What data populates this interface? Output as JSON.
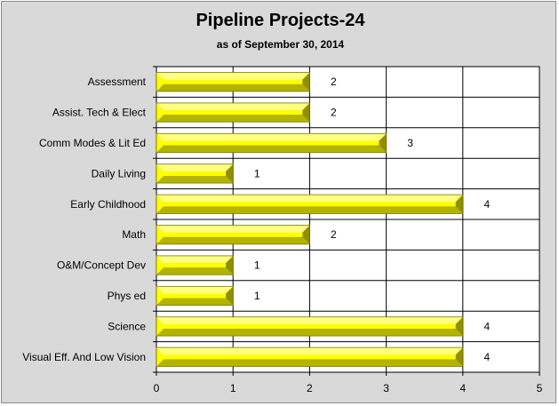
{
  "chart_data": {
    "type": "bar",
    "orientation": "horizontal",
    "title": "Pipeline Projects-24",
    "subtitle": "as of September 30, 2014",
    "categories": [
      "Assessment",
      "Assist. Tech & Elect",
      "Comm Modes & Lit Ed",
      "Daily Living",
      "Early Childhood",
      "Math",
      "O&M/Concept Dev",
      "Phys ed",
      "Science",
      "Visual Eff. And Low Vision"
    ],
    "values": [
      2,
      2,
      3,
      1,
      4,
      2,
      1,
      1,
      4,
      4
    ],
    "data_labels": [
      "2",
      "2",
      "3",
      "1",
      "4",
      "2",
      "1",
      "1",
      "4",
      "4"
    ],
    "xlim": [
      0,
      5
    ],
    "xticks": [
      "0",
      "1",
      "2",
      "3",
      "4",
      "5"
    ],
    "grid": "vertical",
    "legend": "none",
    "bar_color": "#ffff00",
    "bar_shade_color": "#b3b300",
    "background_color": "#d9d9d9",
    "plot_background_color": "#ffffff"
  }
}
